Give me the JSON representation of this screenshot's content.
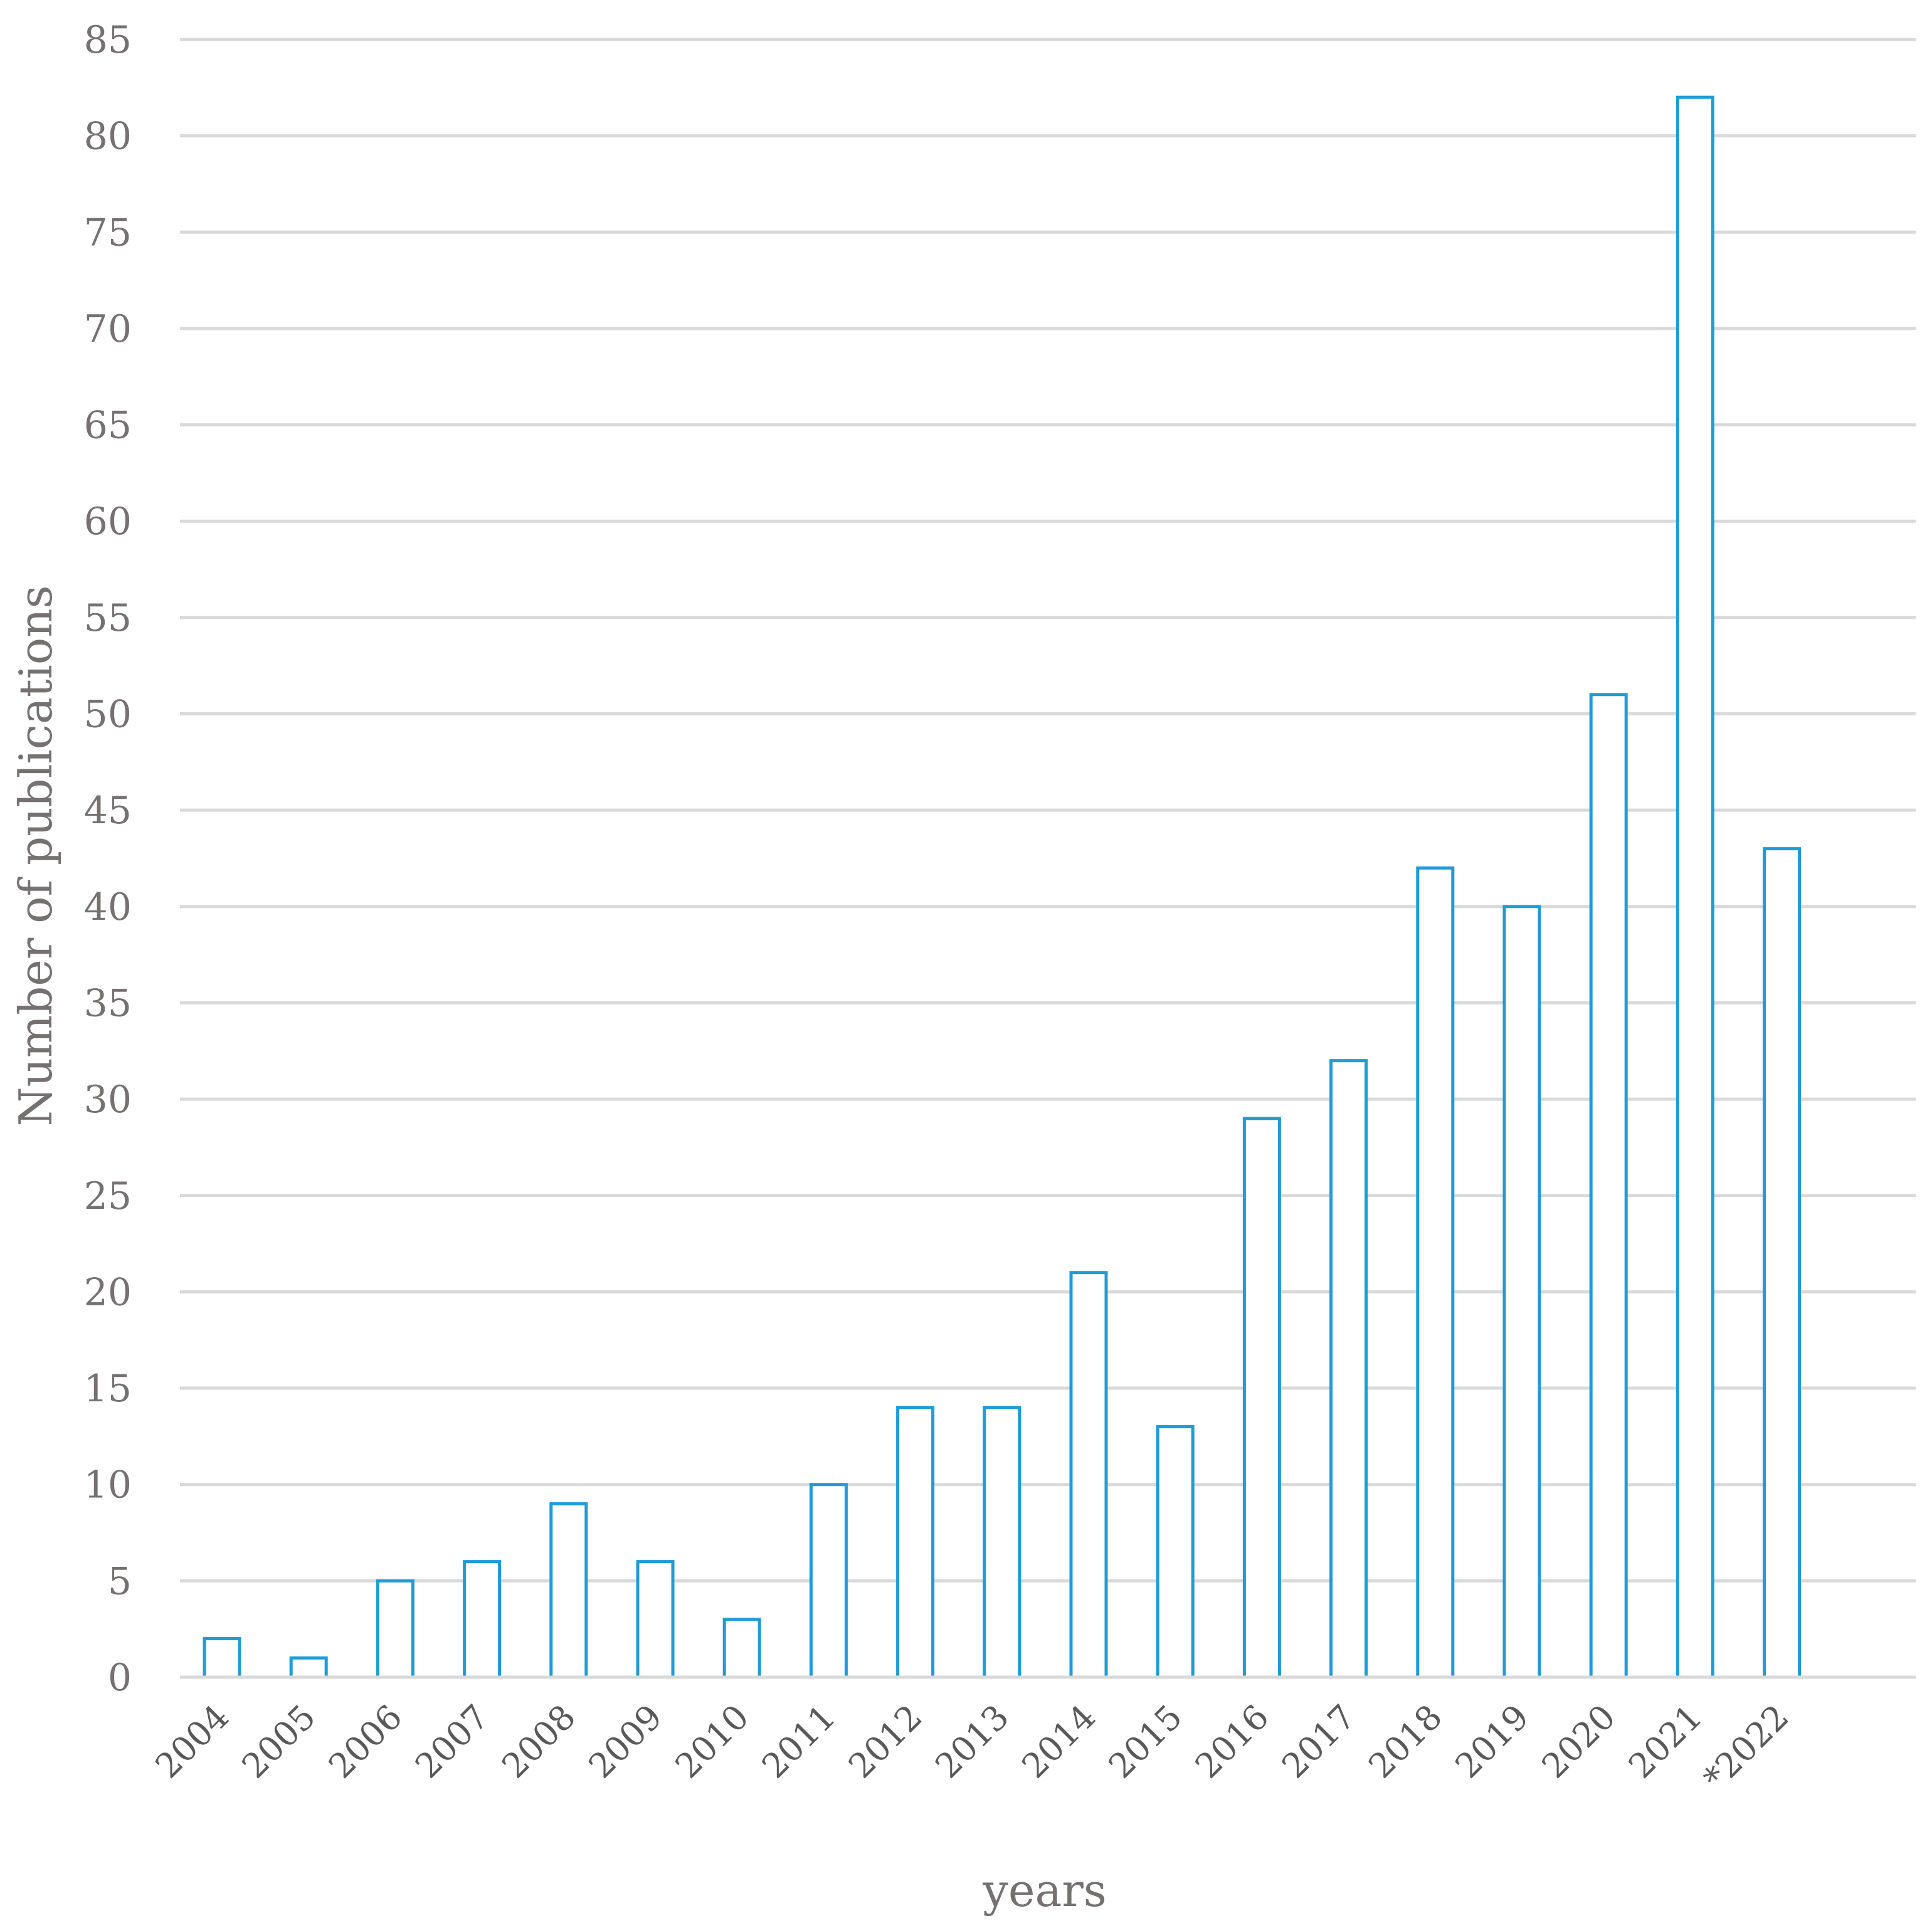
{
  "chart_data": {
    "type": "bar",
    "categories": [
      "2004",
      "2005",
      "2006",
      "2007",
      "2008",
      "2009",
      "2010",
      "2011",
      "2012",
      "2013",
      "2014",
      "2015",
      "2016",
      "2017",
      "2018",
      "2019",
      "2020",
      "2021",
      "*2022"
    ],
    "series": [
      {
        "values": [
          2,
          1,
          5,
          6,
          9,
          6,
          3,
          10,
          14,
          14,
          21,
          13,
          29,
          32,
          42,
          40,
          51,
          82,
          43
        ]
      }
    ],
    "xlabel": "years",
    "ylabel": "Number of publications",
    "ylim": [
      0,
      85
    ],
    "ytick_step": 5,
    "grid": true,
    "legend": "none",
    "colors": {
      "bar_stroke": "#1f9bd7",
      "bar_fill": "#ffffff",
      "grid": "#d9d9d9"
    }
  }
}
